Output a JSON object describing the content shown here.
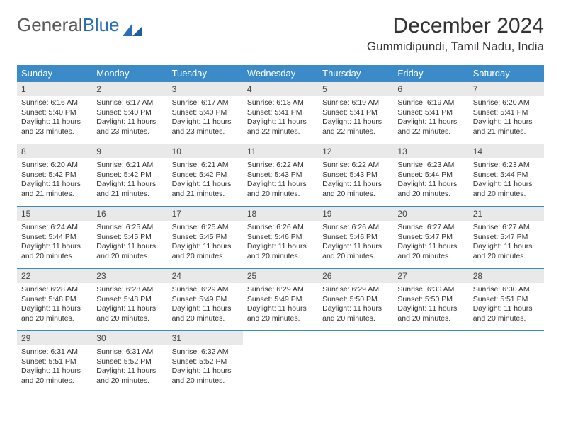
{
  "logo": {
    "text1": "General",
    "text2": "Blue"
  },
  "title": "December 2024",
  "location": "Gummidipundi, Tamil Nadu, India",
  "colors": {
    "header_bg": "#3b8bc9",
    "header_text": "#ffffff",
    "daynum_bg": "#e9e9e9",
    "border": "#3b8bc9",
    "logo_gray": "#5a5a5a",
    "logo_blue": "#2a6fb5"
  },
  "weekdays": [
    "Sunday",
    "Monday",
    "Tuesday",
    "Wednesday",
    "Thursday",
    "Friday",
    "Saturday"
  ],
  "days": [
    {
      "n": "1",
      "sunrise": "Sunrise: 6:16 AM",
      "sunset": "Sunset: 5:40 PM",
      "daylight": "Daylight: 11 hours and 23 minutes."
    },
    {
      "n": "2",
      "sunrise": "Sunrise: 6:17 AM",
      "sunset": "Sunset: 5:40 PM",
      "daylight": "Daylight: 11 hours and 23 minutes."
    },
    {
      "n": "3",
      "sunrise": "Sunrise: 6:17 AM",
      "sunset": "Sunset: 5:40 PM",
      "daylight": "Daylight: 11 hours and 23 minutes."
    },
    {
      "n": "4",
      "sunrise": "Sunrise: 6:18 AM",
      "sunset": "Sunset: 5:41 PM",
      "daylight": "Daylight: 11 hours and 22 minutes."
    },
    {
      "n": "5",
      "sunrise": "Sunrise: 6:19 AM",
      "sunset": "Sunset: 5:41 PM",
      "daylight": "Daylight: 11 hours and 22 minutes."
    },
    {
      "n": "6",
      "sunrise": "Sunrise: 6:19 AM",
      "sunset": "Sunset: 5:41 PM",
      "daylight": "Daylight: 11 hours and 22 minutes."
    },
    {
      "n": "7",
      "sunrise": "Sunrise: 6:20 AM",
      "sunset": "Sunset: 5:41 PM",
      "daylight": "Daylight: 11 hours and 21 minutes."
    },
    {
      "n": "8",
      "sunrise": "Sunrise: 6:20 AM",
      "sunset": "Sunset: 5:42 PM",
      "daylight": "Daylight: 11 hours and 21 minutes."
    },
    {
      "n": "9",
      "sunrise": "Sunrise: 6:21 AM",
      "sunset": "Sunset: 5:42 PM",
      "daylight": "Daylight: 11 hours and 21 minutes."
    },
    {
      "n": "10",
      "sunrise": "Sunrise: 6:21 AM",
      "sunset": "Sunset: 5:42 PM",
      "daylight": "Daylight: 11 hours and 21 minutes."
    },
    {
      "n": "11",
      "sunrise": "Sunrise: 6:22 AM",
      "sunset": "Sunset: 5:43 PM",
      "daylight": "Daylight: 11 hours and 20 minutes."
    },
    {
      "n": "12",
      "sunrise": "Sunrise: 6:22 AM",
      "sunset": "Sunset: 5:43 PM",
      "daylight": "Daylight: 11 hours and 20 minutes."
    },
    {
      "n": "13",
      "sunrise": "Sunrise: 6:23 AM",
      "sunset": "Sunset: 5:44 PM",
      "daylight": "Daylight: 11 hours and 20 minutes."
    },
    {
      "n": "14",
      "sunrise": "Sunrise: 6:23 AM",
      "sunset": "Sunset: 5:44 PM",
      "daylight": "Daylight: 11 hours and 20 minutes."
    },
    {
      "n": "15",
      "sunrise": "Sunrise: 6:24 AM",
      "sunset": "Sunset: 5:44 PM",
      "daylight": "Daylight: 11 hours and 20 minutes."
    },
    {
      "n": "16",
      "sunrise": "Sunrise: 6:25 AM",
      "sunset": "Sunset: 5:45 PM",
      "daylight": "Daylight: 11 hours and 20 minutes."
    },
    {
      "n": "17",
      "sunrise": "Sunrise: 6:25 AM",
      "sunset": "Sunset: 5:45 PM",
      "daylight": "Daylight: 11 hours and 20 minutes."
    },
    {
      "n": "18",
      "sunrise": "Sunrise: 6:26 AM",
      "sunset": "Sunset: 5:46 PM",
      "daylight": "Daylight: 11 hours and 20 minutes."
    },
    {
      "n": "19",
      "sunrise": "Sunrise: 6:26 AM",
      "sunset": "Sunset: 5:46 PM",
      "daylight": "Daylight: 11 hours and 20 minutes."
    },
    {
      "n": "20",
      "sunrise": "Sunrise: 6:27 AM",
      "sunset": "Sunset: 5:47 PM",
      "daylight": "Daylight: 11 hours and 20 minutes."
    },
    {
      "n": "21",
      "sunrise": "Sunrise: 6:27 AM",
      "sunset": "Sunset: 5:47 PM",
      "daylight": "Daylight: 11 hours and 20 minutes."
    },
    {
      "n": "22",
      "sunrise": "Sunrise: 6:28 AM",
      "sunset": "Sunset: 5:48 PM",
      "daylight": "Daylight: 11 hours and 20 minutes."
    },
    {
      "n": "23",
      "sunrise": "Sunrise: 6:28 AM",
      "sunset": "Sunset: 5:48 PM",
      "daylight": "Daylight: 11 hours and 20 minutes."
    },
    {
      "n": "24",
      "sunrise": "Sunrise: 6:29 AM",
      "sunset": "Sunset: 5:49 PM",
      "daylight": "Daylight: 11 hours and 20 minutes."
    },
    {
      "n": "25",
      "sunrise": "Sunrise: 6:29 AM",
      "sunset": "Sunset: 5:49 PM",
      "daylight": "Daylight: 11 hours and 20 minutes."
    },
    {
      "n": "26",
      "sunrise": "Sunrise: 6:29 AM",
      "sunset": "Sunset: 5:50 PM",
      "daylight": "Daylight: 11 hours and 20 minutes."
    },
    {
      "n": "27",
      "sunrise": "Sunrise: 6:30 AM",
      "sunset": "Sunset: 5:50 PM",
      "daylight": "Daylight: 11 hours and 20 minutes."
    },
    {
      "n": "28",
      "sunrise": "Sunrise: 6:30 AM",
      "sunset": "Sunset: 5:51 PM",
      "daylight": "Daylight: 11 hours and 20 minutes."
    },
    {
      "n": "29",
      "sunrise": "Sunrise: 6:31 AM",
      "sunset": "Sunset: 5:51 PM",
      "daylight": "Daylight: 11 hours and 20 minutes."
    },
    {
      "n": "30",
      "sunrise": "Sunrise: 6:31 AM",
      "sunset": "Sunset: 5:52 PM",
      "daylight": "Daylight: 11 hours and 20 minutes."
    },
    {
      "n": "31",
      "sunrise": "Sunrise: 6:32 AM",
      "sunset": "Sunset: 5:52 PM",
      "daylight": "Daylight: 11 hours and 20 minutes."
    }
  ]
}
